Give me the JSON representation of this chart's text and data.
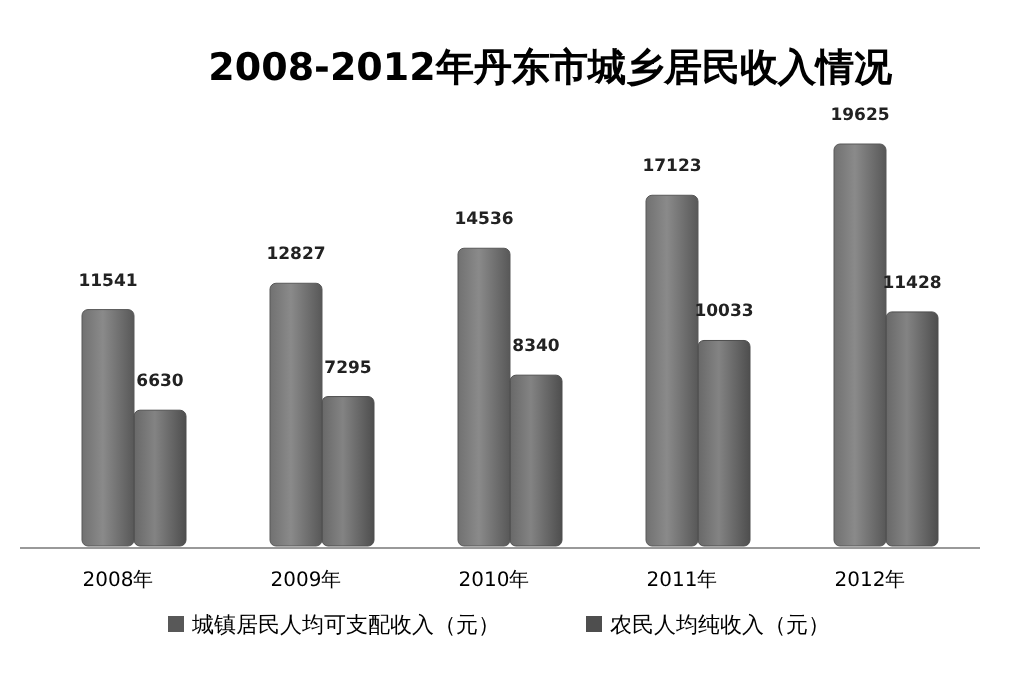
{
  "chart_data": {
    "type": "bar",
    "title": "2008-2012年丹东市城乡居民收入情况",
    "categories": [
      "2008年",
      "2009年",
      "2010年",
      "2011年",
      "2012年"
    ],
    "series": [
      {
        "name": "城镇居民人均可支配收入（元）",
        "color": "#585858",
        "values": [
          11541,
          12827,
          14536,
          17123,
          19625
        ]
      },
      {
        "name": "农民人均纯收入（元）",
        "color": "#4e4e4e",
        "values": [
          6630,
          7295,
          8340,
          10033,
          11428
        ]
      }
    ],
    "data_labels": true,
    "legend": "bottom"
  }
}
